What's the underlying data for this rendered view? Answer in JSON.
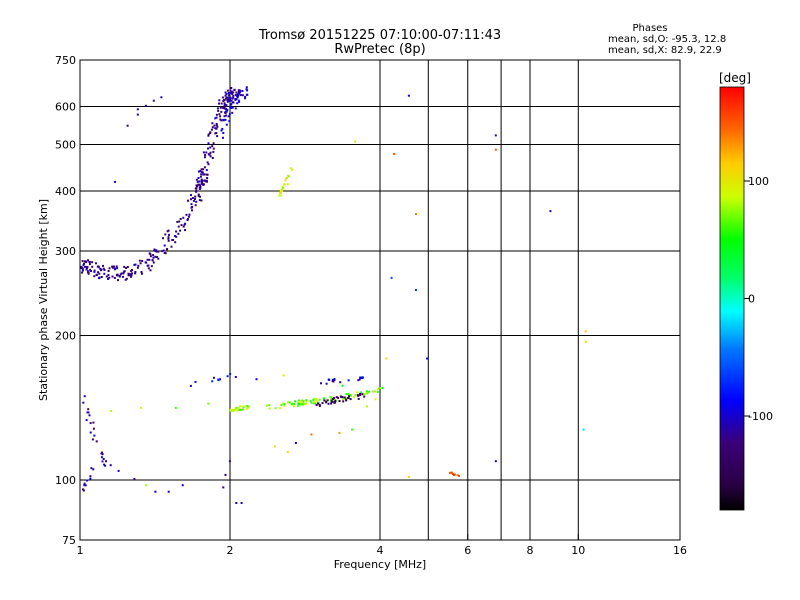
{
  "chart_data": {
    "type": "scatter",
    "title": "Tromsø 20151225 07:10:00-07:11:43",
    "subtitle": "RwPretec (8p)",
    "xlabel": "Frequency [MHz]",
    "ylabel": "Stationary phase Virtual Height [km]",
    "x_scale": "log",
    "y_scale": "log",
    "xlim": [
      1,
      16
    ],
    "ylim": [
      75,
      750
    ],
    "xticks": [
      "1",
      "2",
      "4",
      "6",
      "8",
      "10",
      "16"
    ],
    "x_tick_values": [
      1,
      2,
      4,
      6,
      8,
      10,
      16
    ],
    "x_grid_values": [
      2,
      4,
      5,
      6,
      7,
      8,
      10
    ],
    "yticks": [
      "75",
      "100",
      "200",
      "300",
      "400",
      "500",
      "600",
      "750"
    ],
    "y_tick_values": [
      75,
      100,
      200,
      300,
      400,
      500,
      600,
      750
    ],
    "y_grid_values": [
      100,
      200,
      300,
      400,
      500,
      600
    ],
    "grid": true,
    "legend": {
      "heading": "Phases",
      "lines": [
        "mean, sd,O: -95.3, 12.8",
        "mean, sd,X:  82.9, 22.9"
      ]
    },
    "colorbar": {
      "label": "[deg]",
      "range": [
        -180,
        180
      ],
      "ticks": [
        "100",
        "0",
        "-100"
      ],
      "tick_values": [
        100,
        0,
        -100
      ],
      "placement": "right"
    },
    "traces": [
      {
        "kind": "curve",
        "x": [
          1.0,
          1.05,
          1.1,
          1.2,
          1.3,
          1.4,
          1.5,
          1.6,
          1.7,
          1.75,
          1.8,
          1.85,
          1.9,
          1.95,
          2.0,
          2.05
        ],
        "y": [
          280,
          276,
          272,
          271,
          276,
          290,
          315,
          345,
          390,
          425,
          470,
          530,
          590,
          625,
          640,
          645
        ],
        "phase": -120,
        "width": 0.07,
        "density": 340
      },
      {
        "kind": "curve",
        "x": [
          1.9,
          1.95,
          2.0,
          2.05,
          2.1,
          2.15
        ],
        "y": [
          520,
          560,
          600,
          630,
          640,
          645
        ],
        "phase": -100,
        "width": 0.05,
        "density": 50
      },
      {
        "kind": "curve",
        "x": [
          2.35,
          2.6,
          2.8,
          3.0,
          3.2,
          3.4,
          3.6,
          3.8,
          4.0
        ],
        "y": [
          142,
          144,
          146,
          147,
          148,
          150,
          152,
          153,
          155
        ],
        "phase": 70,
        "width": 0.025,
        "density": 90
      },
      {
        "kind": "curve",
        "x": [
          2.0,
          2.05,
          2.1,
          2.15,
          2.2
        ],
        "y": [
          140,
          141,
          142,
          142,
          143
        ],
        "phase": 75,
        "width": 0.02,
        "density": 25
      },
      {
        "kind": "curve",
        "x": [
          2.9,
          3.1,
          3.3,
          3.5,
          3.7
        ],
        "y": [
          144,
          146,
          148,
          149,
          151
        ],
        "phase": -140,
        "width": 0.025,
        "density": 40
      },
      {
        "kind": "curve",
        "x": [
          2.5,
          2.55,
          2.6,
          2.65
        ],
        "y": [
          395,
          410,
          430,
          450
        ],
        "phase": 90,
        "width": 0.03,
        "density": 20
      },
      {
        "kind": "curve",
        "x": [
          1.65,
          1.75,
          1.85,
          1.95,
          2.05
        ],
        "y": [
          160,
          162,
          163,
          165,
          167
        ],
        "phase": -90,
        "width": 0.03,
        "density": 10
      },
      {
        "kind": "curve",
        "x": [
          3.0,
          3.2,
          3.4,
          3.6,
          3.7
        ],
        "y": [
          160,
          162,
          163,
          164,
          165
        ],
        "phase": -100,
        "width": 0.025,
        "density": 18
      },
      {
        "kind": "curve",
        "x": [
          1.0,
          1.03,
          1.06,
          1.1,
          1.15
        ],
        "y": [
          155,
          140,
          125,
          112,
          105
        ],
        "phase": -110,
        "width": 0.04,
        "density": 25
      },
      {
        "kind": "curve",
        "x": [
          1.0,
          1.03,
          1.06
        ],
        "y": [
          95,
          100,
          106
        ],
        "phase": -105,
        "width": 0.03,
        "density": 10
      },
      {
        "kind": "curve",
        "x": [
          5.55,
          5.65,
          5.75
        ],
        "y": [
          104,
          103,
          103
        ],
        "phase": 150,
        "width": 0.01,
        "density": 8
      }
    ],
    "points": [
      {
        "x": 1.24,
        "y": 550,
        "phase": -130
      },
      {
        "x": 1.3,
        "y": 595,
        "phase": -100
      },
      {
        "x": 1.35,
        "y": 605,
        "phase": -100
      },
      {
        "x": 1.4,
        "y": 620,
        "phase": -100
      },
      {
        "x": 1.45,
        "y": 630,
        "phase": -100
      },
      {
        "x": 1.3,
        "y": 580,
        "phase": -110
      },
      {
        "x": 1.19,
        "y": 105,
        "phase": -100
      },
      {
        "x": 1.28,
        "y": 101,
        "phase": -130
      },
      {
        "x": 1.35,
        "y": 98,
        "phase": 80
      },
      {
        "x": 1.41,
        "y": 95,
        "phase": -100
      },
      {
        "x": 1.6,
        "y": 98,
        "phase": -100
      },
      {
        "x": 1.93,
        "y": 97,
        "phase": -120
      },
      {
        "x": 2.05,
        "y": 90,
        "phase": -100
      },
      {
        "x": 1.15,
        "y": 140,
        "phase": 80
      },
      {
        "x": 1.32,
        "y": 142,
        "phase": 90
      },
      {
        "x": 1.55,
        "y": 142,
        "phase": 60
      },
      {
        "x": 1.5,
        "y": 95,
        "phase": -100
      },
      {
        "x": 1.95,
        "y": 103,
        "phase": -140
      },
      {
        "x": 1.99,
        "y": 110,
        "phase": -130
      },
      {
        "x": 2.45,
        "y": 118,
        "phase": 100
      },
      {
        "x": 2.6,
        "y": 115,
        "phase": 110
      },
      {
        "x": 2.7,
        "y": 120,
        "phase": -100
      },
      {
        "x": 2.9,
        "y": 125,
        "phase": 140
      },
      {
        "x": 3.3,
        "y": 126,
        "phase": 130
      },
      {
        "x": 3.5,
        "y": 128,
        "phase": 60
      },
      {
        "x": 3.55,
        "y": 510,
        "phase": 100
      },
      {
        "x": 4.1,
        "y": 180,
        "phase": 110
      },
      {
        "x": 4.25,
        "y": 480,
        "phase": 150
      },
      {
        "x": 4.55,
        "y": 635,
        "phase": -100
      },
      {
        "x": 4.2,
        "y": 265,
        "phase": -60
      },
      {
        "x": 4.7,
        "y": 250,
        "phase": -70
      },
      {
        "x": 4.7,
        "y": 360,
        "phase": 140
      },
      {
        "x": 4.95,
        "y": 180,
        "phase": -90
      },
      {
        "x": 4.55,
        "y": 102,
        "phase": 110
      },
      {
        "x": 6.8,
        "y": 525,
        "phase": -110
      },
      {
        "x": 6.8,
        "y": 490,
        "phase": 150
      },
      {
        "x": 6.8,
        "y": 110,
        "phase": -100
      },
      {
        "x": 8.75,
        "y": 365,
        "phase": -110
      },
      {
        "x": 10.3,
        "y": 205,
        "phase": 120
      },
      {
        "x": 10.3,
        "y": 195,
        "phase": 100
      },
      {
        "x": 10.2,
        "y": 128,
        "phase": -20
      },
      {
        "x": 5.5,
        "y": 104,
        "phase": 150
      },
      {
        "x": 1.17,
        "y": 420,
        "phase": -100
      },
      {
        "x": 2.1,
        "y": 90,
        "phase": -110
      },
      {
        "x": 1.8,
        "y": 145,
        "phase": 70
      },
      {
        "x": 2.25,
        "y": 163,
        "phase": -100
      },
      {
        "x": 2.55,
        "y": 166,
        "phase": 100
      },
      {
        "x": 3.35,
        "y": 158,
        "phase": 40
      },
      {
        "x": 3.75,
        "y": 143,
        "phase": 80
      },
      {
        "x": 3.9,
        "y": 148,
        "phase": 100
      }
    ]
  }
}
